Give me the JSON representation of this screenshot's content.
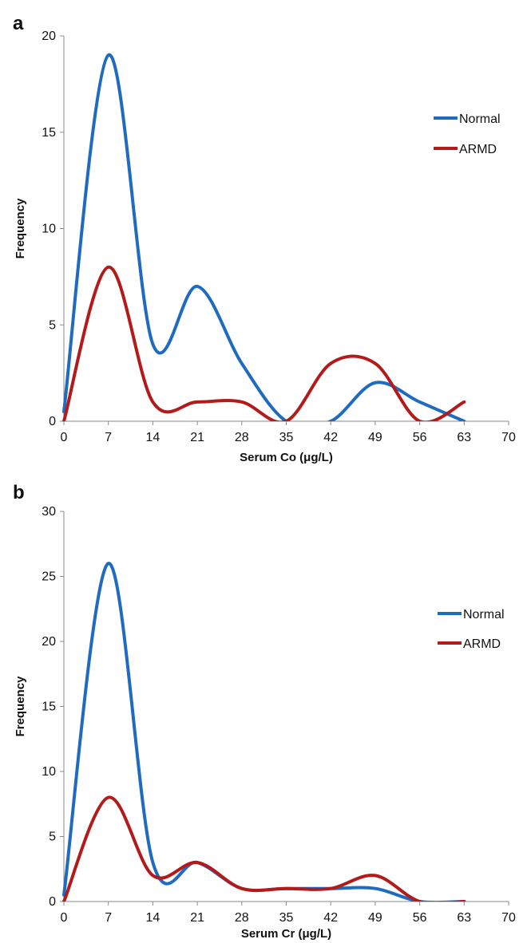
{
  "chart_data": [
    {
      "type": "line",
      "panel_label": "a",
      "xlabel": "Serum Co (μg/L)",
      "ylabel": "Frequency",
      "xlim": [
        0,
        70
      ],
      "ylim": [
        0,
        20
      ],
      "x_ticks": [
        0,
        7,
        14,
        21,
        28,
        35,
        42,
        49,
        56,
        63,
        70
      ],
      "y_ticks": [
        0,
        5,
        10,
        15,
        20
      ],
      "grid": false,
      "legend_position": "right",
      "x": [
        0,
        7,
        14,
        21,
        28,
        35,
        42,
        49,
        56,
        63
      ],
      "series": [
        {
          "name": "Normal",
          "color": "#1f6bbf",
          "values": [
            0.5,
            19,
            4,
            7,
            3,
            0,
            0,
            2,
            1,
            0
          ]
        },
        {
          "name": "ARMD",
          "color": "#b31b1b",
          "values": [
            0,
            8,
            1,
            1,
            1,
            0,
            3,
            3,
            0,
            1
          ]
        }
      ]
    },
    {
      "type": "line",
      "panel_label": "b",
      "xlabel": "Serum Cr (μg/L)",
      "ylabel": "Frequency",
      "xlim": [
        0,
        70
      ],
      "ylim": [
        0,
        30
      ],
      "x_ticks": [
        0,
        7,
        14,
        21,
        28,
        35,
        42,
        49,
        56,
        63,
        70
      ],
      "y_ticks": [
        0,
        5,
        10,
        15,
        20,
        25,
        30
      ],
      "grid": false,
      "legend_position": "right",
      "x": [
        0,
        7,
        14,
        21,
        28,
        35,
        42,
        49,
        56,
        63
      ],
      "series": [
        {
          "name": "Normal",
          "color": "#1f6bbf",
          "values": [
            0.5,
            26,
            3,
            3,
            1,
            1,
            1,
            1,
            0,
            0
          ]
        },
        {
          "name": "ARMD",
          "color": "#b31b1b",
          "values": [
            0,
            8,
            2,
            3,
            1,
            1,
            1,
            2,
            0,
            0
          ]
        }
      ]
    }
  ]
}
